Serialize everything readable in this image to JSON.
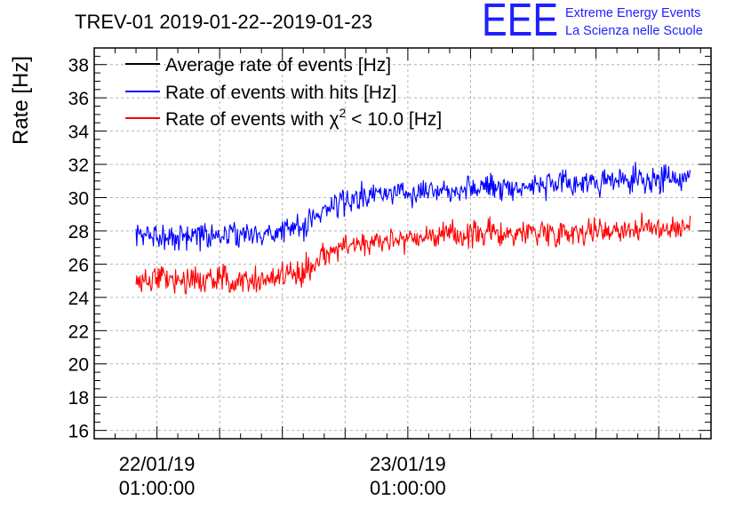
{
  "header": {
    "title": "TREV-01 2019-01-22--2019-01-23",
    "logo_text": "EEE",
    "logo_line1": "Extreme Energy Events",
    "logo_line2": "La Scienza nelle Scuole"
  },
  "colors": {
    "average": "#000000",
    "hits": "#0000ff",
    "chi2": "#ff0000",
    "grid": "#b4b4b4",
    "logo": "#1f1fff"
  },
  "chart_data": {
    "type": "line",
    "title": "TREV-01 2019-01-22--2019-01-23",
    "ylabel": "Rate [Hz]",
    "xlabel": "",
    "ylim": [
      15.5,
      39
    ],
    "y_ticks": [
      "16",
      "18",
      "20",
      "22",
      "24",
      "26",
      "28",
      "30",
      "32",
      "34",
      "36",
      "38"
    ],
    "x_ticks": [
      {
        "date": "22/01/19",
        "time": "01:00:00"
      },
      {
        "date": "23/01/19",
        "time": "01:00:00"
      }
    ],
    "xlim": [
      "2019-01-21T19:00:00",
      "2019-01-24T06:00:00"
    ],
    "grid": true,
    "legend_position": "top-left",
    "legend": [
      {
        "label": "Average rate of events [Hz]",
        "color": "#000000"
      },
      {
        "label": "Rate of events with hits [Hz]",
        "color": "#0000ff"
      },
      {
        "label_prefix": "Rate of events with ",
        "label_symbol": "χ",
        "label_sup": "2",
        "label_suffix": " < 10.0 [Hz]",
        "color": "#ff0000"
      }
    ],
    "series": [
      {
        "name": "Rate of events with hits [Hz]",
        "color": "#0000ff",
        "x": [
          "2019-01-21T23:00",
          "2019-01-22T01:00",
          "2019-01-22T03:00",
          "2019-01-22T05:00",
          "2019-01-22T07:00",
          "2019-01-22T09:00",
          "2019-01-22T11:00",
          "2019-01-22T13:00",
          "2019-01-22T15:00",
          "2019-01-22T17:00",
          "2019-01-22T19:00",
          "2019-01-22T21:00",
          "2019-01-22T23:00",
          "2019-01-23T01:00",
          "2019-01-23T03:00",
          "2019-01-23T05:00",
          "2019-01-23T07:00",
          "2019-01-23T09:00",
          "2019-01-23T11:00",
          "2019-01-23T13:00",
          "2019-01-23T15:00",
          "2019-01-23T17:00",
          "2019-01-23T19:00",
          "2019-01-23T21:00",
          "2019-01-23T23:00",
          "2019-01-24T01:00",
          "2019-01-24T03:00",
          "2019-01-24T04:00"
        ],
        "values": [
          27.6,
          27.8,
          27.6,
          27.8,
          27.7,
          27.9,
          27.7,
          28.1,
          28.2,
          29.3,
          29.8,
          30.0,
          30.3,
          30.4,
          30.5,
          30.5,
          30.6,
          30.7,
          30.6,
          30.8,
          30.7,
          30.9,
          30.9,
          31.0,
          31.0,
          31.1,
          31.1,
          31.2
        ]
      },
      {
        "name": "Rate of events with χ2 < 10.0 [Hz]",
        "color": "#ff0000",
        "x": [
          "2019-01-21T23:00",
          "2019-01-22T01:00",
          "2019-01-22T03:00",
          "2019-01-22T05:00",
          "2019-01-22T07:00",
          "2019-01-22T09:00",
          "2019-01-22T11:00",
          "2019-01-22T13:00",
          "2019-01-22T15:00",
          "2019-01-22T17:00",
          "2019-01-22T19:00",
          "2019-01-22T21:00",
          "2019-01-22T23:00",
          "2019-01-23T01:00",
          "2019-01-23T03:00",
          "2019-01-23T05:00",
          "2019-01-23T07:00",
          "2019-01-23T09:00",
          "2019-01-23T11:00",
          "2019-01-23T13:00",
          "2019-01-23T15:00",
          "2019-01-23T17:00",
          "2019-01-23T19:00",
          "2019-01-23T21:00",
          "2019-01-23T23:00",
          "2019-01-24T01:00",
          "2019-01-24T03:00",
          "2019-01-24T04:00"
        ],
        "values": [
          24.9,
          25.1,
          25.0,
          25.1,
          25.0,
          25.2,
          25.0,
          25.4,
          25.5,
          26.6,
          27.1,
          27.3,
          27.5,
          27.6,
          27.7,
          27.7,
          27.8,
          27.9,
          27.8,
          28.0,
          27.9,
          28.0,
          28.0,
          28.1,
          28.1,
          28.2,
          28.2,
          28.3
        ]
      }
    ]
  }
}
